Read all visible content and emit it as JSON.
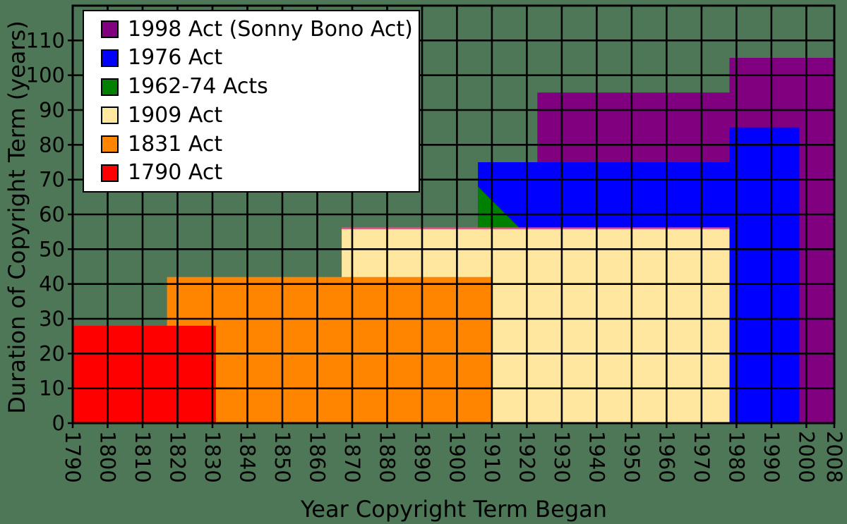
{
  "chart_data": {
    "type": "area",
    "title": "",
    "xlabel": "Year Copyright Term Began",
    "ylabel": "Duration of Copyright Term (years)",
    "xlim": [
      1790,
      2008
    ],
    "ylim": [
      0,
      120
    ],
    "x_ticks": [
      1790,
      1800,
      1810,
      1820,
      1830,
      1840,
      1850,
      1860,
      1870,
      1880,
      1890,
      1900,
      1910,
      1920,
      1930,
      1940,
      1950,
      1960,
      1970,
      1980,
      1990,
      2000,
      2008
    ],
    "y_ticks": [
      0,
      10,
      20,
      30,
      40,
      50,
      60,
      70,
      80,
      90,
      100,
      110
    ],
    "grid": true,
    "grid_color": "#000000",
    "axis_color": "#000000",
    "text_color": "#000000",
    "background_color": "#4d7757",
    "legend_position": "upper left",
    "legend_background": "#ffffff",
    "legend_border_color": "#000000",
    "series": [
      {
        "name": "1998 Act (Sonny Bono Act)",
        "color": "#800080",
        "points": [
          [
            1923,
            95
          ],
          [
            1978,
            95
          ],
          [
            1978,
            105
          ],
          [
            2008,
            105
          ],
          [
            2008,
            0
          ],
          [
            1923,
            0
          ]
        ]
      },
      {
        "name": "1976 Act",
        "color": "#0000ff",
        "points": [
          [
            1906,
            75
          ],
          [
            1978,
            75
          ],
          [
            1978,
            85
          ],
          [
            1998,
            85
          ],
          [
            1998,
            0
          ],
          [
            1906,
            0
          ]
        ]
      },
      {
        "name": "1962-74 Acts",
        "color": "#008000",
        "points": [
          [
            1906,
            68
          ],
          [
            1918,
            56
          ],
          [
            1906,
            56
          ]
        ]
      },
      {
        "name": "1909 Act",
        "color": "#ffe7a0",
        "top_edge_color": "#e75480",
        "points": [
          [
            1867,
            56
          ],
          [
            1978,
            56
          ],
          [
            1978,
            0
          ],
          [
            1867,
            0
          ]
        ]
      },
      {
        "name": "1831 Act",
        "color": "#ff8400",
        "points": [
          [
            1817,
            42
          ],
          [
            1910,
            42
          ],
          [
            1910,
            0
          ],
          [
            1817,
            0
          ]
        ]
      },
      {
        "name": "1790 Act",
        "color": "#ff0000",
        "points": [
          [
            1790,
            28
          ],
          [
            1831,
            28
          ],
          [
            1831,
            0
          ],
          [
            1790,
            0
          ]
        ]
      }
    ]
  }
}
